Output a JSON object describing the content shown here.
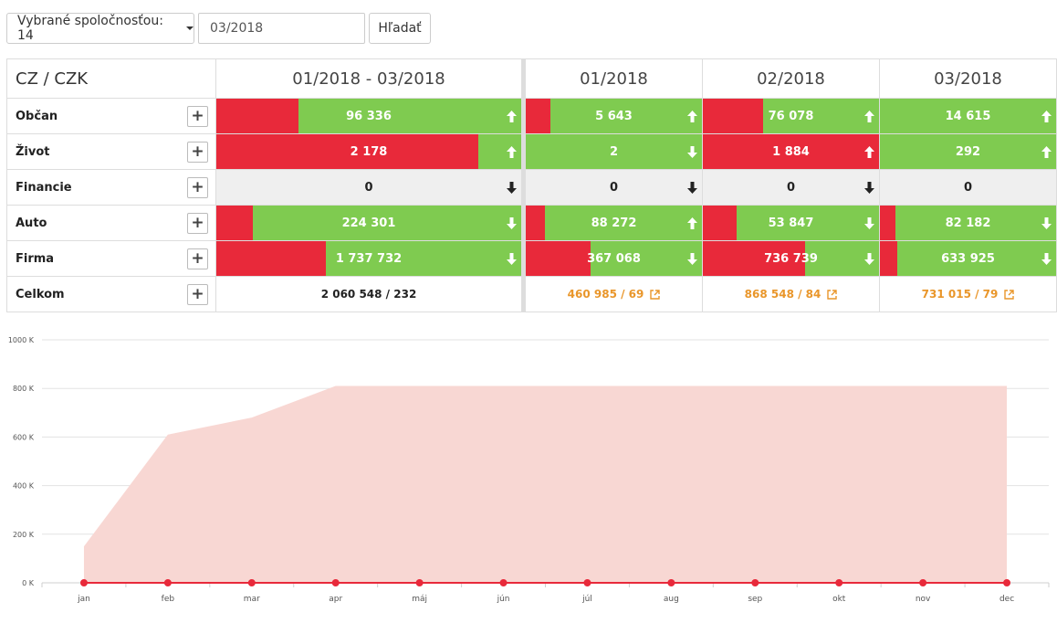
{
  "toolbar": {
    "company_filter_label": "Vybrané spoločnosťou: 14",
    "period_value": "03/2018",
    "search_label": "Hľadať"
  },
  "table": {
    "corner_label": "CZ / CZK",
    "columns": [
      "01/2018 - 03/2018",
      "01/2018",
      "02/2018",
      "03/2018"
    ],
    "rows": [
      {
        "label": "Občan",
        "cells": [
          {
            "value": "96 336",
            "red_share": 0.27,
            "trend": "up"
          },
          {
            "value": "5 643",
            "red_share": 0.14,
            "trend": "up"
          },
          {
            "value": "76 078",
            "red_share": 0.34,
            "trend": "up"
          },
          {
            "value": "14 615",
            "red_share": 0.0,
            "trend": "up"
          }
        ]
      },
      {
        "label": "Život",
        "cells": [
          {
            "value": "2 178",
            "red_share": 0.86,
            "trend": "up"
          },
          {
            "value": "2",
            "red_share": 0.0,
            "trend": "down"
          },
          {
            "value": "1 884",
            "red_share": 1.0,
            "trend": "up"
          },
          {
            "value": "292",
            "red_share": 0.0,
            "trend": "up"
          }
        ]
      },
      {
        "label": "Financie",
        "cells": [
          {
            "value": "0",
            "red_share": 0,
            "trend": "down",
            "empty": true
          },
          {
            "value": "0",
            "red_share": 0,
            "trend": "down",
            "empty": true
          },
          {
            "value": "0",
            "red_share": 0,
            "trend": "down",
            "empty": true
          },
          {
            "value": "0",
            "red_share": 0,
            "trend": "none",
            "empty": true
          }
        ]
      },
      {
        "label": "Auto",
        "cells": [
          {
            "value": "224 301",
            "red_share": 0.12,
            "trend": "down"
          },
          {
            "value": "88 272",
            "red_share": 0.11,
            "trend": "up"
          },
          {
            "value": "53 847",
            "red_share": 0.19,
            "trend": "down"
          },
          {
            "value": "82 182",
            "red_share": 0.09,
            "trend": "down"
          }
        ]
      },
      {
        "label": "Firma",
        "cells": [
          {
            "value": "1 737 732",
            "red_share": 0.36,
            "trend": "down"
          },
          {
            "value": "367 068",
            "red_share": 0.37,
            "trend": "down"
          },
          {
            "value": "736 739",
            "red_share": 0.58,
            "trend": "down"
          },
          {
            "value": "633 925",
            "red_share": 0.1,
            "trend": "down"
          }
        ]
      }
    ],
    "total_row": {
      "label": "Celkom",
      "cells": [
        "2 060 548 / 232",
        "460 985 / 69",
        "868 548 / 84",
        "731 015 / 79"
      ]
    }
  },
  "chart_data": {
    "type": "area",
    "x": [
      "jan",
      "feb",
      "mar",
      "apr",
      "máj",
      "jún",
      "júl",
      "aug",
      "sep",
      "okt",
      "nov",
      "dec"
    ],
    "yticks": [
      "0 K",
      "200 K",
      "400 K",
      "600 K",
      "800 K",
      "1000 K"
    ],
    "ylim": [
      0,
      1000
    ],
    "series": [
      {
        "color": "#f8d7d3",
        "values": [
          150,
          610,
          680,
          810,
          810,
          810,
          810,
          810,
          810,
          810,
          810,
          810
        ]
      },
      {
        "color": "#e8293a",
        "values": [
          0,
          0,
          0,
          0,
          0,
          0,
          0,
          0,
          0,
          0,
          0,
          0
        ]
      }
    ],
    "grid": true
  },
  "colors": {
    "positive": "#7fcb50",
    "negative": "#e8293a",
    "link": "#e9962a"
  }
}
